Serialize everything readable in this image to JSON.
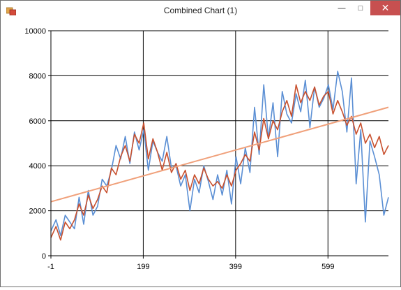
{
  "window": {
    "title": "Combined Chart (1)",
    "minimize_icon": "minimize-icon",
    "maximize_icon": "maximize-icon",
    "close_icon": "close-icon",
    "close_color": "#c75050"
  },
  "chart_data": {
    "type": "line",
    "title": "",
    "xlabel": "",
    "ylabel": "",
    "xlim": [
      -1,
      730
    ],
    "ylim": [
      0,
      10000
    ],
    "x_ticks": [
      -1,
      199,
      399,
      599
    ],
    "x_tick_labels": [
      "-1",
      "199",
      "399",
      "599"
    ],
    "y_ticks": [
      0,
      2000,
      4000,
      6000,
      8000,
      10000
    ],
    "y_tick_labels": [
      "0",
      "2000",
      "4000",
      "6000",
      "8000",
      "10000"
    ],
    "grid": true,
    "legend": "none",
    "series": [
      {
        "color": "#5b8fd4",
        "x": [
          -1,
          10,
          20,
          30,
          40,
          50,
          60,
          70,
          80,
          90,
          100,
          110,
          120,
          130,
          140,
          150,
          160,
          170,
          180,
          190,
          200,
          210,
          220,
          230,
          240,
          250,
          260,
          270,
          280,
          290,
          300,
          310,
          320,
          330,
          340,
          350,
          360,
          370,
          380,
          390,
          400,
          410,
          420,
          430,
          440,
          450,
          460,
          470,
          480,
          490,
          500,
          510,
          520,
          530,
          540,
          550,
          560,
          570,
          580,
          590,
          600,
          610,
          620,
          630,
          640,
          650,
          660,
          670,
          680,
          690,
          700,
          710,
          720,
          730
        ],
        "y": [
          1100,
          1600,
          900,
          1800,
          1500,
          1200,
          2600,
          1400,
          2900,
          1800,
          2200,
          3400,
          3100,
          3800,
          4900,
          4300,
          5300,
          4100,
          5500,
          4700,
          5600,
          3800,
          5100,
          4600,
          4200,
          5300,
          3900,
          4000,
          3100,
          3600,
          2000,
          3400,
          2800,
          4000,
          3300,
          2500,
          3600,
          2700,
          3800,
          2300,
          4400,
          3200,
          4800,
          3700,
          6600,
          4500,
          7600,
          5200,
          6800,
          4400,
          7300,
          6300,
          5900,
          7200,
          6400,
          7800,
          5700,
          7500,
          6600,
          7000,
          7600,
          6500,
          8200,
          7300,
          5500,
          7900,
          3200,
          5600,
          1500,
          5100,
          4400,
          3600,
          1800,
          2600
        ]
      },
      {
        "color": "#c8502e",
        "x": [
          -1,
          10,
          20,
          30,
          40,
          50,
          60,
          70,
          80,
          90,
          100,
          110,
          120,
          130,
          140,
          150,
          160,
          170,
          180,
          190,
          200,
          210,
          220,
          230,
          240,
          250,
          260,
          270,
          280,
          290,
          300,
          310,
          320,
          330,
          340,
          350,
          360,
          370,
          380,
          390,
          400,
          410,
          420,
          430,
          440,
          450,
          460,
          470,
          480,
          490,
          500,
          510,
          520,
          530,
          540,
          550,
          560,
          570,
          580,
          590,
          600,
          610,
          620,
          630,
          640,
          650,
          660,
          670,
          680,
          690,
          700,
          710,
          720,
          730
        ],
        "y": [
          800,
          1300,
          700,
          1500,
          1200,
          1600,
          2300,
          1800,
          2700,
          2100,
          2500,
          3100,
          2800,
          3900,
          3600,
          4400,
          4900,
          4200,
          5400,
          5000,
          5900,
          4300,
          5200,
          4600,
          3800,
          4600,
          3700,
          4100,
          3400,
          3800,
          2900,
          3600,
          3200,
          3900,
          3400,
          3100,
          3300,
          3000,
          3600,
          3100,
          3800,
          4100,
          4500,
          4200,
          5500,
          4700,
          6100,
          5200,
          6000,
          5600,
          6400,
          6900,
          6200,
          7600,
          6800,
          7300,
          6900,
          7500,
          6700,
          7100,
          7300,
          6300,
          6900,
          6400,
          5800,
          6200,
          5400,
          5900,
          5000,
          5400,
          4800,
          5300,
          4500,
          4900
        ]
      },
      {
        "color": "#f0a07a",
        "x": [
          -1,
          730
        ],
        "y": [
          2400,
          6600
        ]
      }
    ]
  }
}
